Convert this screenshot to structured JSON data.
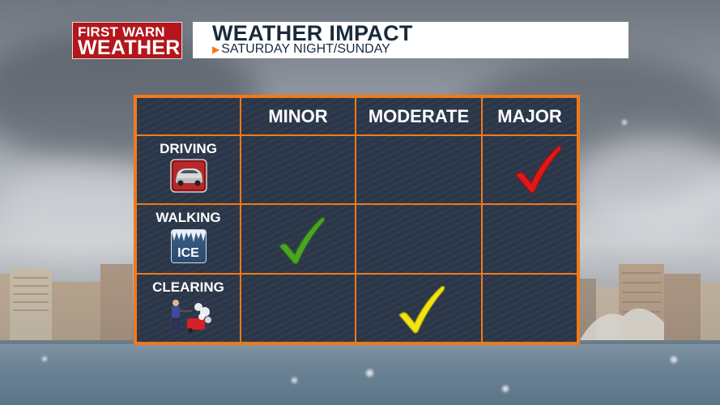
{
  "header": {
    "logo": {
      "line1": "FIRST WARN",
      "line2": "WEATHER"
    },
    "title": "WEATHER IMPACT",
    "subtitle": "SATURDAY NIGHT/SUNDAY"
  },
  "grid": {
    "columns": [
      "MINOR",
      "MODERATE",
      "MAJOR"
    ],
    "rows": [
      {
        "label": "DRIVING",
        "icon": "car-icon",
        "impact": "MAJOR",
        "check_color": "#e01818"
      },
      {
        "label": "WALKING",
        "icon": "ice-icon",
        "icon_text": "ICE",
        "impact": "MINOR",
        "check_color": "#4aa524"
      },
      {
        "label": "CLEARING",
        "icon": "snowblower-icon",
        "impact": "MODERATE",
        "check_color": "#f2e313"
      }
    ]
  },
  "colors": {
    "accent": "#f07a1a",
    "logo_bg": "#b3161b",
    "grid_bg": "#2b3749",
    "title_text": "#1a2a3c"
  }
}
